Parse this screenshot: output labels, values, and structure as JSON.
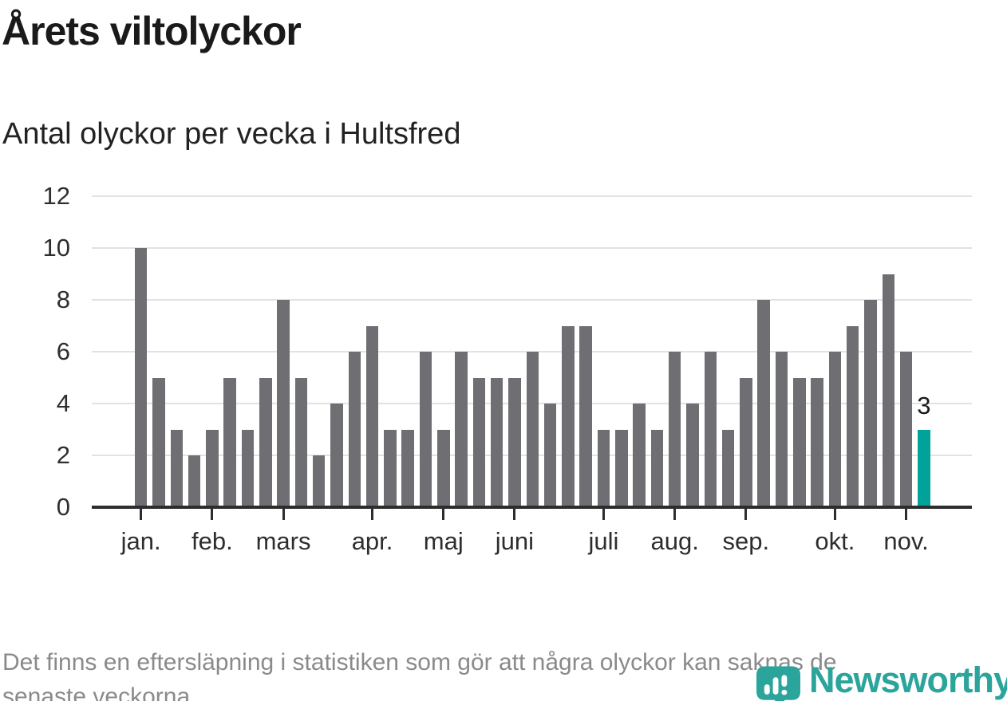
{
  "header": {
    "title": "Årets viltolyckor",
    "subtitle": "Antal olyckor per vecka i Hultsfred"
  },
  "chart_data": {
    "type": "bar",
    "title": "Årets viltolyckor",
    "subtitle": "Antal olyckor per vecka i Hultsfred",
    "xlabel": "",
    "ylabel": "",
    "ylim": [
      0,
      12
    ],
    "yticks": [
      0,
      2,
      4,
      6,
      8,
      10,
      12
    ],
    "grid": "horizontal",
    "bar_count": 45,
    "values": [
      10,
      5,
      3,
      2,
      3,
      5,
      3,
      5,
      8,
      5,
      2,
      4,
      6,
      7,
      3,
      3,
      6,
      3,
      6,
      5,
      5,
      5,
      6,
      4,
      7,
      7,
      3,
      3,
      4,
      3,
      6,
      4,
      6,
      3,
      5,
      8,
      6,
      5,
      5,
      6,
      7,
      8,
      9,
      6,
      3
    ],
    "months": [
      {
        "label": "jan.",
        "bar_index": 0
      },
      {
        "label": "feb.",
        "bar_index": 4
      },
      {
        "label": "mars",
        "bar_index": 8
      },
      {
        "label": "apr.",
        "bar_index": 13
      },
      {
        "label": "maj",
        "bar_index": 17
      },
      {
        "label": "juni",
        "bar_index": 21
      },
      {
        "label": "juli",
        "bar_index": 26
      },
      {
        "label": "aug.",
        "bar_index": 30
      },
      {
        "label": "sep.",
        "bar_index": 34
      },
      {
        "label": "okt.",
        "bar_index": 39
      },
      {
        "label": "nov.",
        "bar_index": 43
      }
    ],
    "highlight": {
      "index": 44,
      "label": "3"
    },
    "colors": {
      "bar": "#6f6e73",
      "highlight": "#00a29a",
      "axis": "#2d2d2d",
      "gridline": "#e2e2e2"
    }
  },
  "footer": {
    "lines": [
      "Det finns en eftersläpning i statistiken som gör att några olyckor kan saknas de",
      "senaste veckorna."
    ]
  },
  "logo": {
    "wordmark": "Newsworthy",
    "color": "#2ba59c"
  }
}
